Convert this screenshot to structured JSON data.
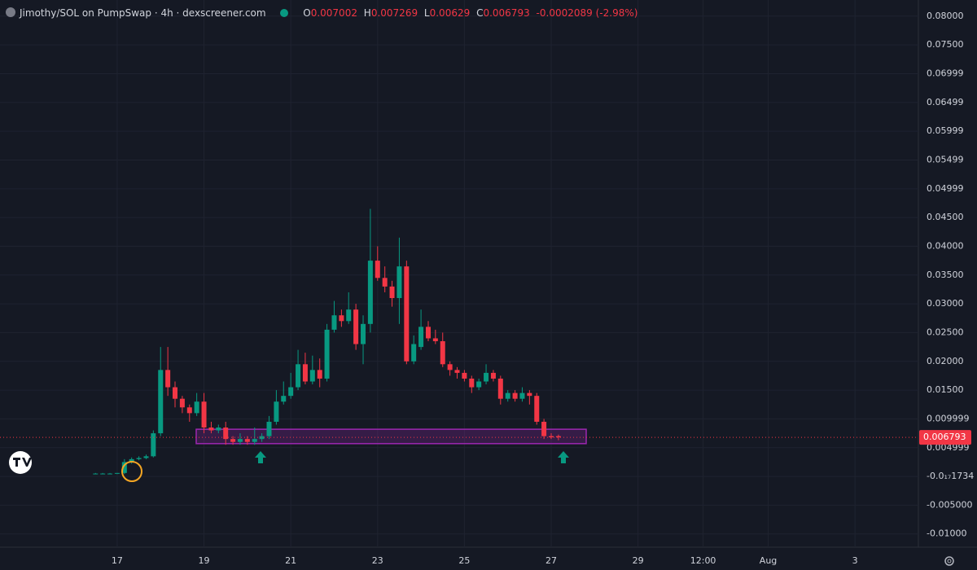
{
  "chart_data": {
    "type": "candlestick",
    "title": "Jimothy/SOL on PumpSwap · 4h · dexscreener.com",
    "ohlc_labels": [
      "O",
      "H",
      "L",
      "C"
    ],
    "ohlc_values": [
      0.007002,
      0.007269,
      0.00629,
      0.006793
    ],
    "change": -0.0002089,
    "change_pct_label": "(-2.98%)",
    "colors": {
      "up": "#089981",
      "down": "#f23645",
      "zone": "#9c27b0"
    },
    "grid": true,
    "xlim": [
      14.3,
      35.46
    ],
    "ylim": [
      -0.0123,
      0.0828
    ],
    "xticks": [
      17,
      19,
      21,
      23,
      25,
      27,
      29,
      {
        "value": 30.5,
        "label": "12:00"
      },
      {
        "value": 32,
        "label": "Aug"
      },
      {
        "value": 34,
        "label": "3"
      }
    ],
    "yticks": [
      {
        "value": 0.08,
        "label": "0.08000"
      },
      {
        "value": 0.075,
        "label": "0.07500"
      },
      {
        "value": 0.06999,
        "label": "0.06999"
      },
      {
        "value": 0.06499,
        "label": "0.06499"
      },
      {
        "value": 0.05999,
        "label": "0.05999"
      },
      {
        "value": 0.05499,
        "label": "0.05499"
      },
      {
        "value": 0.04999,
        "label": "0.04999"
      },
      {
        "value": 0.045,
        "label": "0.04500"
      },
      {
        "value": 0.04,
        "label": "0.04000"
      },
      {
        "value": 0.035,
        "label": "0.03500"
      },
      {
        "value": 0.03,
        "label": "0.03000"
      },
      {
        "value": 0.025,
        "label": "0.02500"
      },
      {
        "value": 0.02,
        "label": "0.02000"
      },
      {
        "value": 0.015,
        "label": "0.01500"
      },
      {
        "value": 0.009999,
        "label": "0.009999"
      },
      {
        "value": 0.004999,
        "label": "0.004999"
      },
      {
        "value": -1.734e-18,
        "label": "-0.0₁₇1734"
      },
      {
        "value": -0.005,
        "label": "-0.005000"
      },
      {
        "value": -0.01,
        "label": "-0.01000"
      }
    ],
    "last_price": {
      "value": 0.006793,
      "label": "0.006793"
    },
    "zone": [
      0.0057,
      0.0082
    ],
    "x": [
      16.5,
      16.667,
      16.833,
      17,
      17.167,
      17.333,
      17.5,
      17.667,
      17.833,
      18,
      18.167,
      18.333,
      18.5,
      18.667,
      18.833,
      19,
      19.167,
      19.333,
      19.5,
      19.667,
      19.833,
      20,
      20.167,
      20.333,
      20.5,
      20.667,
      20.833,
      21,
      21.167,
      21.333,
      21.5,
      21.667,
      21.833,
      22,
      22.167,
      22.333,
      22.5,
      22.667,
      22.833,
      23,
      23.167,
      23.333,
      23.5,
      23.667,
      23.833,
      24,
      24.167,
      24.333,
      24.5,
      24.667,
      24.833,
      25,
      25.167,
      25.333,
      25.5,
      25.667,
      25.833,
      26,
      26.167,
      26.333,
      26.5,
      26.667,
      26.833,
      27,
      27.167
    ],
    "open": [
      0.0005,
      0.0005,
      0.0005,
      0.0005,
      0.0006,
      0.0025,
      0.003,
      0.0032,
      0.0035,
      0.0075,
      0.0185,
      0.0155,
      0.0135,
      0.012,
      0.011,
      0.013,
      0.0085,
      0.008,
      0.0085,
      0.0065,
      0.006,
      0.0065,
      0.006,
      0.0065,
      0.007,
      0.0095,
      0.013,
      0.014,
      0.0155,
      0.0195,
      0.0165,
      0.0185,
      0.017,
      0.0255,
      0.028,
      0.027,
      0.029,
      0.023,
      0.0265,
      0.0375,
      0.0345,
      0.033,
      0.031,
      0.0365,
      0.02,
      0.0225,
      0.026,
      0.024,
      0.0235,
      0.0195,
      0.0185,
      0.018,
      0.017,
      0.0155,
      0.0165,
      0.018,
      0.017,
      0.0135,
      0.0145,
      0.0135,
      0.0145,
      0.014,
      0.0095,
      0.007,
      0.007002
    ],
    "high": [
      0.0006,
      0.0006,
      0.0006,
      0.0006,
      0.003,
      0.0033,
      0.0035,
      0.0038,
      0.008,
      0.0225,
      0.0225,
      0.0165,
      0.014,
      0.0125,
      0.0145,
      0.0145,
      0.0095,
      0.009,
      0.0095,
      0.007,
      0.0075,
      0.007,
      0.0085,
      0.0075,
      0.0105,
      0.015,
      0.0165,
      0.018,
      0.022,
      0.0215,
      0.021,
      0.0205,
      0.0265,
      0.0305,
      0.029,
      0.032,
      0.03,
      0.028,
      0.0465,
      0.04,
      0.0365,
      0.034,
      0.0415,
      0.0375,
      0.0245,
      0.029,
      0.027,
      0.0255,
      0.025,
      0.02,
      0.019,
      0.0185,
      0.0175,
      0.017,
      0.0195,
      0.0185,
      0.0175,
      0.015,
      0.015,
      0.0155,
      0.015,
      0.0145,
      0.01,
      0.0075,
      0.007269
    ],
    "low": [
      0.0004,
      0.0004,
      0.0004,
      0.0004,
      0.0004,
      0.0022,
      0.0028,
      0.003,
      0.0033,
      0.007,
      0.014,
      0.012,
      0.011,
      0.0095,
      0.0105,
      0.0075,
      0.0075,
      0.0075,
      0.0055,
      0.0055,
      0.0055,
      0.0055,
      0.0055,
      0.006,
      0.0065,
      0.009,
      0.0125,
      0.0135,
      0.015,
      0.016,
      0.016,
      0.0155,
      0.0165,
      0.025,
      0.026,
      0.0265,
      0.022,
      0.0195,
      0.025,
      0.034,
      0.032,
      0.0295,
      0.0265,
      0.0195,
      0.0195,
      0.022,
      0.0235,
      0.023,
      0.019,
      0.0175,
      0.017,
      0.0165,
      0.0145,
      0.015,
      0.016,
      0.0165,
      0.0125,
      0.013,
      0.013,
      0.013,
      0.0125,
      0.009,
      0.0065,
      0.0065,
      0.00629
    ],
    "close": [
      0.0005,
      0.0005,
      0.0005,
      0.0006,
      0.0025,
      0.003,
      0.0032,
      0.0035,
      0.0075,
      0.0185,
      0.0155,
      0.0135,
      0.012,
      0.011,
      0.013,
      0.0085,
      0.008,
      0.0085,
      0.0065,
      0.006,
      0.0065,
      0.006,
      0.0065,
      0.007,
      0.0095,
      0.013,
      0.014,
      0.0155,
      0.0195,
      0.0165,
      0.0185,
      0.017,
      0.0255,
      0.028,
      0.027,
      0.029,
      0.023,
      0.0265,
      0.0375,
      0.0345,
      0.033,
      0.031,
      0.0365,
      0.02,
      0.023,
      0.026,
      0.024,
      0.0235,
      0.0195,
      0.0185,
      0.018,
      0.017,
      0.0155,
      0.0165,
      0.018,
      0.017,
      0.0135,
      0.0145,
      0.0135,
      0.0145,
      0.014,
      0.0095,
      0.007,
      0.0068,
      0.006793
    ]
  }
}
